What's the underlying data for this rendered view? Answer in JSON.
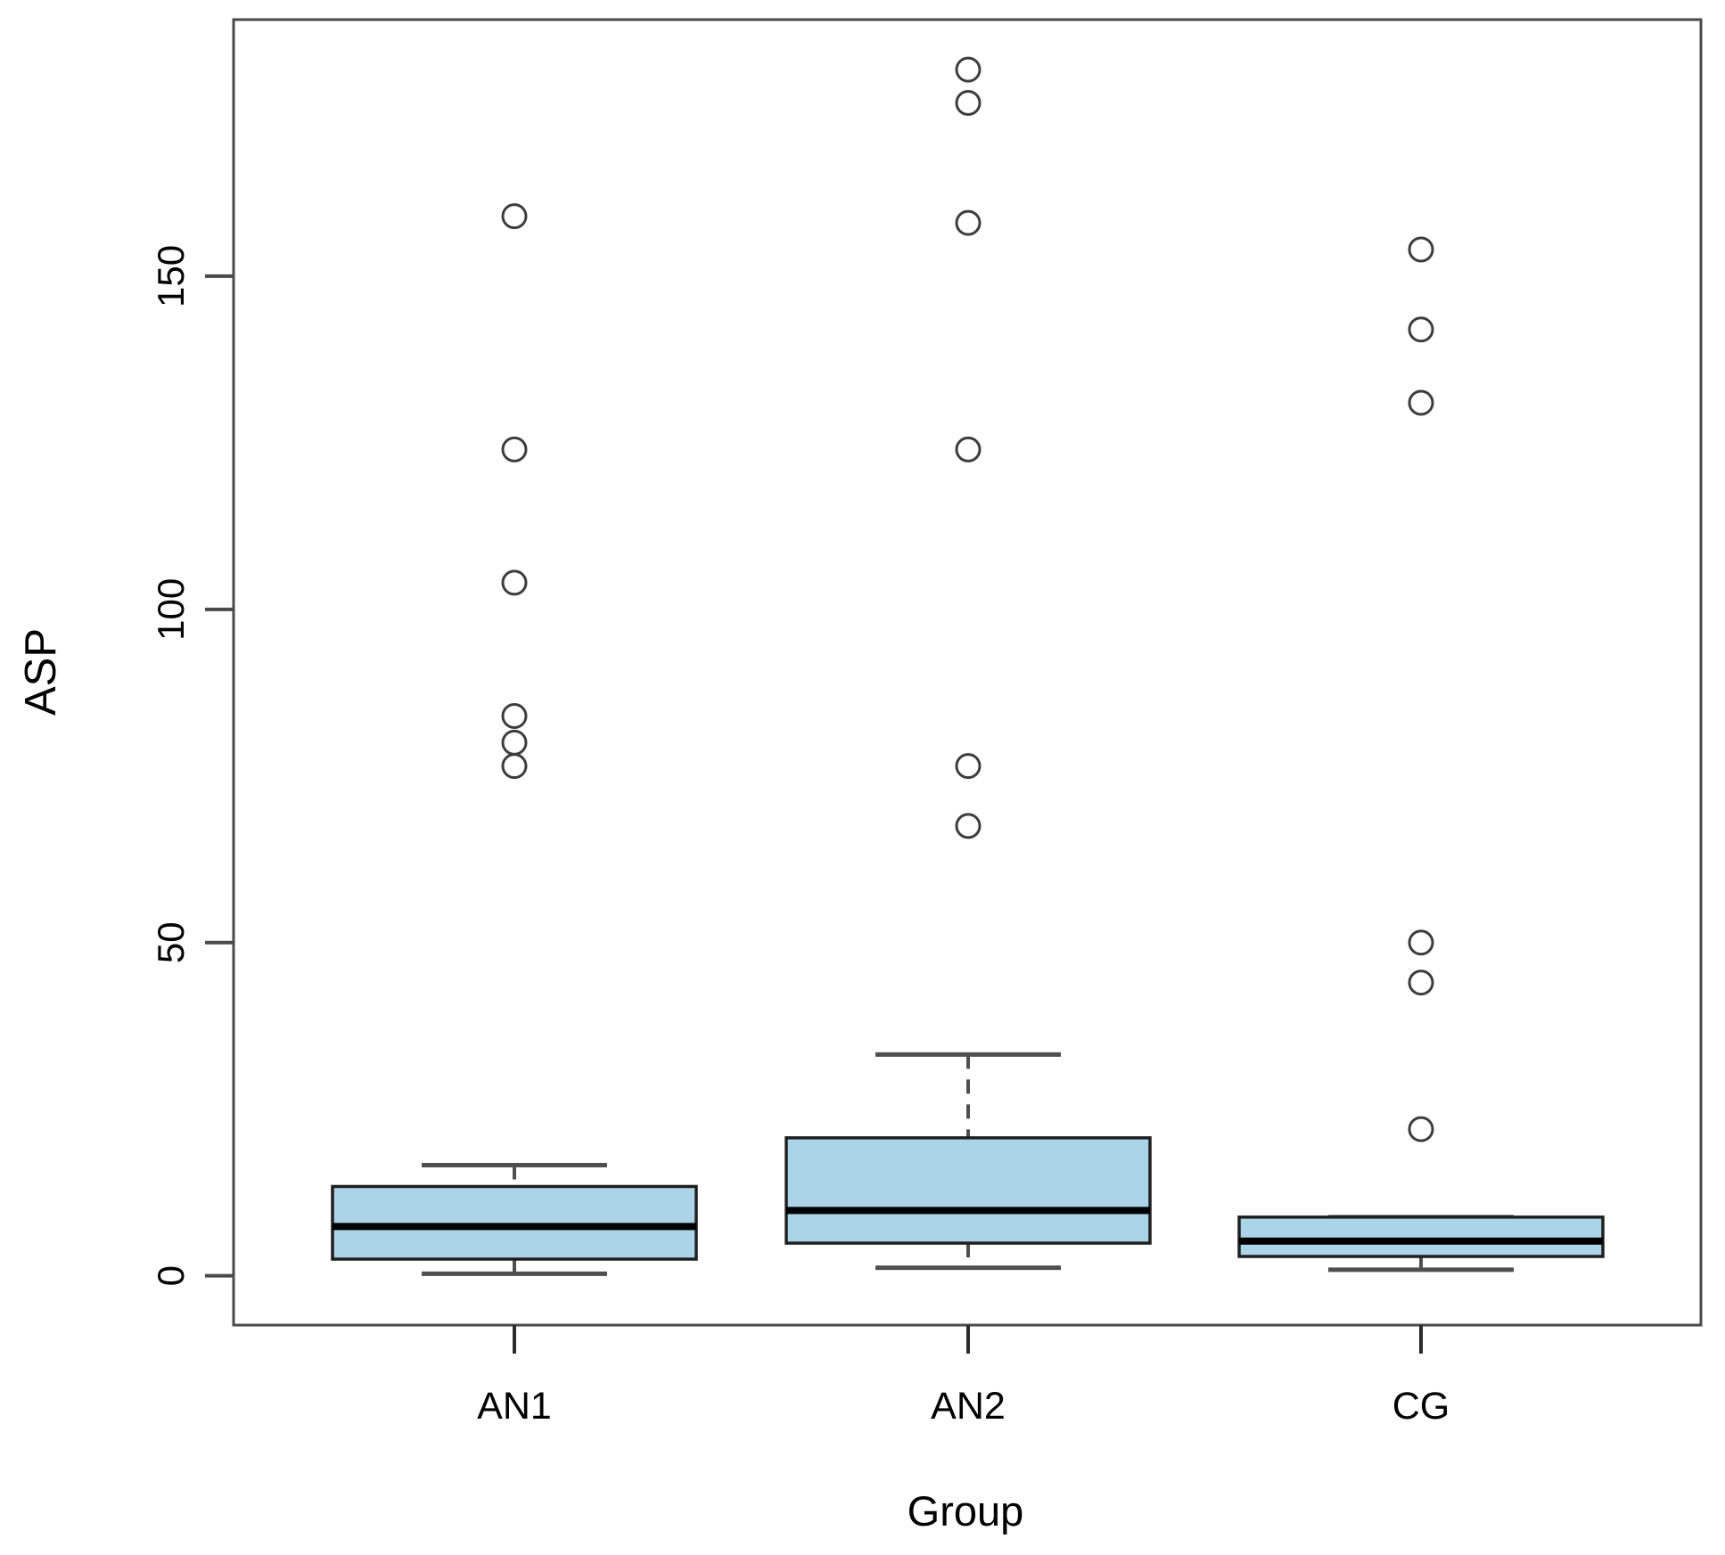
{
  "chart_data": {
    "type": "boxplot",
    "title": "",
    "xlabel": "Group",
    "ylabel": "ASP",
    "categories": [
      "AN1",
      "AN2",
      "CG"
    ],
    "yticks": [
      0,
      50,
      100,
      150
    ],
    "ylim": [
      -7.4,
      188.5
    ],
    "grid": false,
    "legend": null,
    "box_fill": "#abd4e8",
    "box_border": "#1f1f1f",
    "median_color": "#000000",
    "whisker_color": "#4f4f4f",
    "outlier_color": "#3d3d3d",
    "frame_color": "#4a4a4a",
    "series": [
      {
        "name": "AN1",
        "whisker_low": 0.3,
        "q1": 2.5,
        "median": 7.4,
        "q3": 13.4,
        "whisker_high": 16.6,
        "outliers": [
          76.5,
          80,
          84,
          104,
          124,
          159
        ]
      },
      {
        "name": "AN2",
        "whisker_low": 1.2,
        "q1": 4.9,
        "median": 9.8,
        "q3": 20.7,
        "whisker_high": 33.2,
        "outliers": [
          67.5,
          76.5,
          124,
          158,
          176,
          181
        ]
      },
      {
        "name": "CG",
        "whisker_low": 0.9,
        "q1": 2.9,
        "median": 5.2,
        "q3": 8.8,
        "whisker_high": 8.8,
        "outliers": [
          22,
          44,
          50,
          131,
          142,
          154
        ]
      }
    ]
  }
}
